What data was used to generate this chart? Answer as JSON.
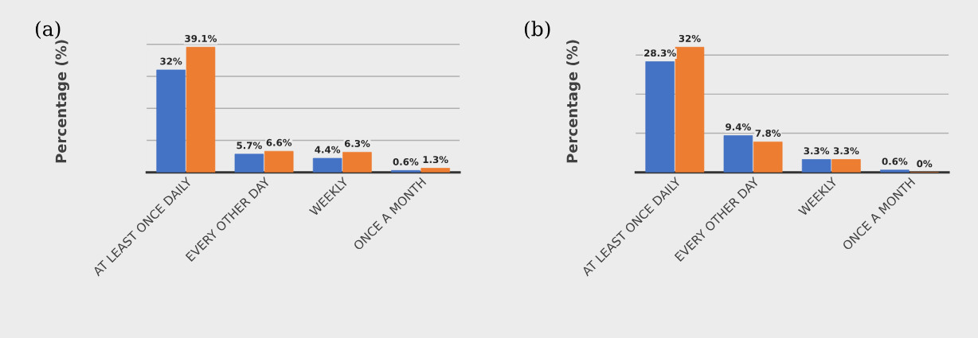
{
  "chart_data": [
    {
      "type": "bar",
      "ylabel": "Percentage (%)",
      "annotations": [
        "(a)"
      ],
      "categories": [
        "AT LEAST ONCE DAILY",
        "EVERY OTHER DAY",
        "WEEKLY",
        "ONCE A MONTH"
      ],
      "series": [
        {
          "color": "#4472c4",
          "values": [
            32,
            5.7,
            4.4,
            0.6
          ],
          "value_labels": [
            "32%",
            "5.7%",
            "4.4%",
            "0.6%"
          ]
        },
        {
          "color": "#ed7d31",
          "values": [
            39.1,
            6.6,
            6.3,
            1.3
          ],
          "value_labels": [
            "39.1%",
            "6.6%",
            "6.3%",
            "1.3%"
          ]
        }
      ],
      "grid": "y",
      "tick_labels": "x"
    },
    {
      "type": "bar",
      "ylabel": "Percentage (%)",
      "annotations": [
        "(b)"
      ],
      "categories": [
        "AT LEAST ONCE DAILY",
        "EVERY OTHER DAY",
        "WEEKLY",
        "ONCE A MONTH"
      ],
      "series": [
        {
          "color": "#4472c4",
          "values": [
            28.3,
            9.4,
            3.3,
            0.6
          ],
          "value_labels": [
            "28.3%",
            "9.4%",
            "3.3%",
            "0.6%"
          ]
        },
        {
          "color": "#ed7d31",
          "values": [
            32,
            7.8,
            3.3,
            0
          ],
          "value_labels": [
            "32%",
            "7.8%",
            "3.3%",
            "0%"
          ]
        }
      ],
      "grid": "y",
      "tick_labels": "x"
    }
  ]
}
